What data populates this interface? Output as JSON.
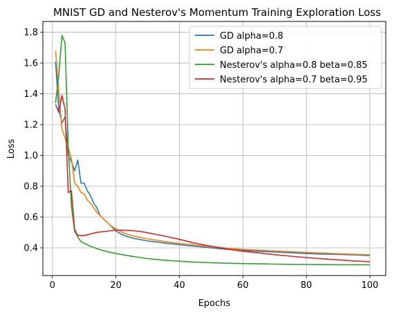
{
  "chart_data": {
    "type": "line",
    "title": "MNIST GD and Nesterov's Momentum Training Exploration Loss",
    "xlabel": "Epochs",
    "ylabel": "Loss",
    "xlim": [
      -3,
      105
    ],
    "ylim": [
      0.22,
      1.87
    ],
    "xticks": [
      0,
      20,
      40,
      60,
      80,
      100
    ],
    "yticks": [
      0.4,
      0.6,
      0.8,
      1.0,
      1.2,
      1.4,
      1.6,
      1.8
    ],
    "ytick_labels": [
      "0.4",
      "0.6",
      "0.8",
      "1.0",
      "1.2",
      "1.4",
      "1.6",
      "1.8"
    ],
    "grid": true,
    "legend_position": "upper right",
    "series": [
      {
        "name": "GD alpha=0.8",
        "color": "#1f77b4",
        "points": [
          [
            1,
            1.61
          ],
          [
            2,
            1.3
          ],
          [
            3,
            1.21
          ],
          [
            4,
            1.25
          ],
          [
            5,
            1.0
          ],
          [
            6,
            0.96
          ],
          [
            7,
            0.9
          ],
          [
            8,
            0.97
          ],
          [
            9,
            0.82
          ],
          [
            10,
            0.82
          ],
          [
            11,
            0.77
          ],
          [
            12,
            0.74
          ],
          [
            13,
            0.69
          ],
          [
            14,
            0.66
          ],
          [
            15,
            0.61
          ],
          [
            16,
            0.59
          ],
          [
            17,
            0.57
          ],
          [
            18,
            0.55
          ],
          [
            19,
            0.53
          ],
          [
            20,
            0.51
          ],
          [
            22,
            0.485
          ],
          [
            24,
            0.47
          ],
          [
            26,
            0.46
          ],
          [
            28,
            0.452
          ],
          [
            30,
            0.445
          ],
          [
            35,
            0.432
          ],
          [
            40,
            0.42
          ],
          [
            45,
            0.41
          ],
          [
            50,
            0.4
          ],
          [
            55,
            0.39
          ],
          [
            60,
            0.383
          ],
          [
            65,
            0.378
          ],
          [
            70,
            0.373
          ],
          [
            75,
            0.368
          ],
          [
            80,
            0.363
          ],
          [
            85,
            0.36
          ],
          [
            90,
            0.357
          ],
          [
            95,
            0.354
          ],
          [
            100,
            0.35
          ]
        ]
      },
      {
        "name": "GD alpha=0.7",
        "color": "#ff7f0e",
        "points": [
          [
            1,
            1.68
          ],
          [
            2,
            1.42
          ],
          [
            3,
            1.17
          ],
          [
            4,
            1.11
          ],
          [
            5,
            1.05
          ],
          [
            6,
            0.98
          ],
          [
            7,
            0.82
          ],
          [
            8,
            0.8
          ],
          [
            9,
            0.76
          ],
          [
            10,
            0.75
          ],
          [
            11,
            0.71
          ],
          [
            12,
            0.69
          ],
          [
            13,
            0.66
          ],
          [
            14,
            0.63
          ],
          [
            15,
            0.61
          ],
          [
            16,
            0.59
          ],
          [
            17,
            0.57
          ],
          [
            18,
            0.55
          ],
          [
            19,
            0.535
          ],
          [
            20,
            0.525
          ],
          [
            22,
            0.5
          ],
          [
            24,
            0.485
          ],
          [
            26,
            0.475
          ],
          [
            28,
            0.466
          ],
          [
            30,
            0.458
          ],
          [
            35,
            0.442
          ],
          [
            40,
            0.428
          ],
          [
            45,
            0.418
          ],
          [
            50,
            0.408
          ],
          [
            55,
            0.398
          ],
          [
            60,
            0.39
          ],
          [
            65,
            0.385
          ],
          [
            70,
            0.38
          ],
          [
            75,
            0.375
          ],
          [
            80,
            0.37
          ],
          [
            85,
            0.366
          ],
          [
            90,
            0.362
          ],
          [
            95,
            0.358
          ],
          [
            100,
            0.355
          ]
        ]
      },
      {
        "name": "Nesterov's alpha=0.8 beta=0.85",
        "color": "#2ca02c",
        "points": [
          [
            1,
            1.34
          ],
          [
            2,
            1.52
          ],
          [
            3,
            1.78
          ],
          [
            4,
            1.73
          ],
          [
            5,
            1.06
          ],
          [
            6,
            0.67
          ],
          [
            7,
            0.51
          ],
          [
            8,
            0.47
          ],
          [
            9,
            0.44
          ],
          [
            10,
            0.43
          ],
          [
            12,
            0.41
          ],
          [
            14,
            0.395
          ],
          [
            16,
            0.382
          ],
          [
            18,
            0.372
          ],
          [
            20,
            0.363
          ],
          [
            25,
            0.345
          ],
          [
            30,
            0.33
          ],
          [
            35,
            0.32
          ],
          [
            40,
            0.313
          ],
          [
            45,
            0.307
          ],
          [
            50,
            0.303
          ],
          [
            55,
            0.3
          ],
          [
            60,
            0.298
          ],
          [
            65,
            0.296
          ],
          [
            70,
            0.294
          ],
          [
            75,
            0.293
          ],
          [
            80,
            0.292
          ],
          [
            85,
            0.291
          ],
          [
            90,
            0.29
          ],
          [
            95,
            0.29
          ],
          [
            100,
            0.29
          ]
        ]
      },
      {
        "name": "Nesterov's alpha=0.7 beta=0.95",
        "color": "#d62728",
        "points": [
          [
            1,
            1.33
          ],
          [
            2,
            1.28
          ],
          [
            3,
            1.39
          ],
          [
            4,
            1.3
          ],
          [
            5,
            0.76
          ],
          [
            6,
            0.77
          ],
          [
            7,
            0.52
          ],
          [
            8,
            0.48
          ],
          [
            9,
            0.48
          ],
          [
            10,
            0.48
          ],
          [
            12,
            0.49
          ],
          [
            14,
            0.5
          ],
          [
            16,
            0.505
          ],
          [
            18,
            0.51
          ],
          [
            20,
            0.515
          ],
          [
            22,
            0.515
          ],
          [
            24,
            0.513
          ],
          [
            26,
            0.51
          ],
          [
            28,
            0.505
          ],
          [
            30,
            0.498
          ],
          [
            35,
            0.478
          ],
          [
            40,
            0.455
          ],
          [
            45,
            0.43
          ],
          [
            50,
            0.41
          ],
          [
            55,
            0.392
          ],
          [
            60,
            0.378
          ],
          [
            65,
            0.367
          ],
          [
            70,
            0.356
          ],
          [
            75,
            0.346
          ],
          [
            80,
            0.337
          ],
          [
            85,
            0.329
          ],
          [
            90,
            0.322
          ],
          [
            95,
            0.315
          ],
          [
            100,
            0.31
          ]
        ]
      }
    ]
  }
}
